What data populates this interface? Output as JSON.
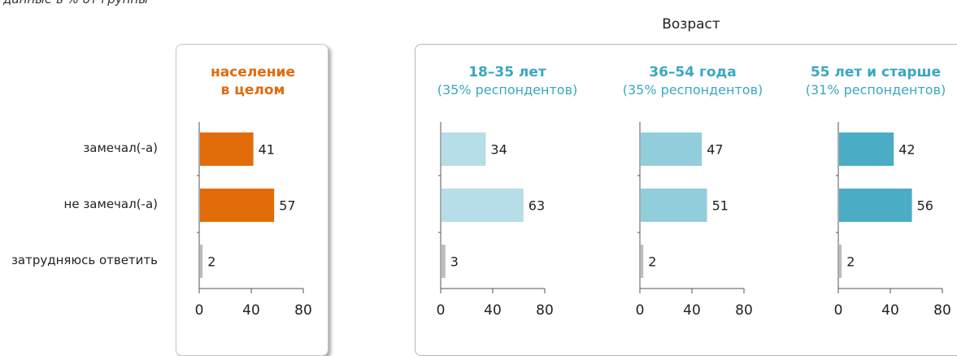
{
  "subtitle": "данные в % от группы",
  "age_group_title": "Возраст",
  "row_labels": [
    "замечал(-а)",
    "не замечал(-а)",
    "затрудняюсь ответить"
  ],
  "chart_data": {
    "type": "bar",
    "orientation": "horizontal",
    "categories": [
      "замечал(-а)",
      "не замечал(-а)",
      "затрудняюсь ответить"
    ],
    "xlim": [
      0,
      80
    ],
    "x_ticks": [
      0,
      40,
      80
    ],
    "panels": [
      {
        "title_line1": "население",
        "title_line2": "в целом",
        "subtitle": "",
        "title_color": "#e06b10",
        "colors": [
          "#e36c0a",
          "#e36c0a",
          "#bdbdbd"
        ],
        "values": [
          41,
          57,
          2
        ]
      },
      {
        "title_line1": "18–35 лет",
        "title_line2": "",
        "subtitle": "(35% респондентов)",
        "title_color": "#3aa7c1",
        "colors": [
          "#b7dde8",
          "#b7dde8",
          "#bdbdbd"
        ],
        "values": [
          34,
          63,
          3
        ]
      },
      {
        "title_line1": "36–54 года",
        "title_line2": "",
        "subtitle": "(35% респондентов)",
        "title_color": "#3aa7c1",
        "colors": [
          "#92cddc",
          "#92cddc",
          "#bdbdbd"
        ],
        "values": [
          47,
          51,
          2
        ]
      },
      {
        "title_line1": "55 лет и старше",
        "title_line2": "",
        "subtitle": "(31% респондентов)",
        "title_color": "#3aa7c1",
        "colors": [
          "#4bacc6",
          "#4bacc6",
          "#bdbdbd"
        ],
        "values": [
          42,
          56,
          2
        ]
      }
    ]
  }
}
